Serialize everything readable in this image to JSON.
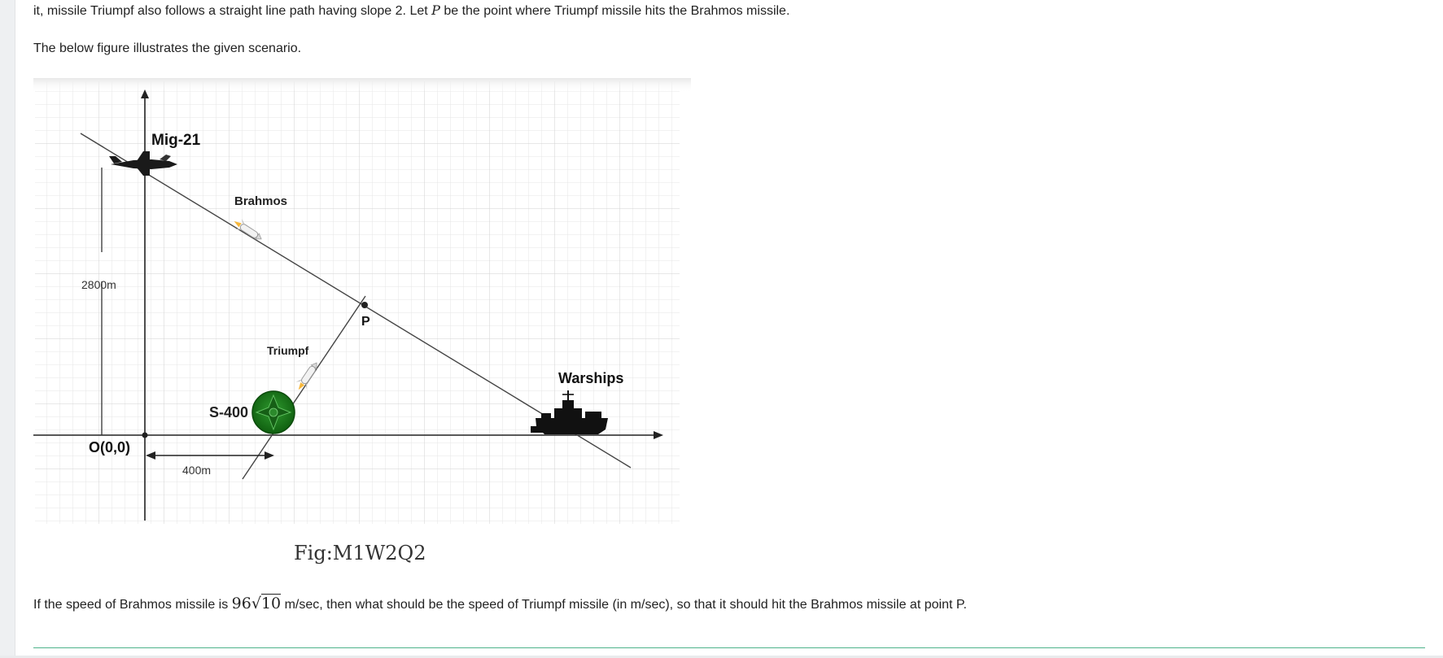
{
  "text": {
    "top_line_pre": "it, missile Triumpf also follows a straight line path having slope 2. Let ",
    "top_line_var": "P",
    "top_line_post": " be the point where Triumpf missile hits the Brahmos missile.",
    "intro": "The below figure illustrates the given scenario.",
    "question_pre": "If the speed of Brahmos missile is ",
    "question_coef": "96",
    "question_radicand": "10",
    "question_post": " m/sec, then what should be the speed of Triumpf missile (in m/sec), so that it should hit the Brahmos missile at point P."
  },
  "figure": {
    "caption": "Fig:M1W2Q2",
    "labels": {
      "mig": "Mig-21",
      "brahmos": "Brahmos",
      "height": "2800m",
      "point_p": "P",
      "triumpf": "Triumpf",
      "warships": "Warships",
      "s400": "S-400",
      "origin": "O(0,0)",
      "distance": "400m"
    },
    "icons": [
      "fighter-jet-icon",
      "missile-icon",
      "missile-icon",
      "s400-emblem-icon",
      "warship-icon"
    ]
  },
  "colors": {
    "accent_rule": "#4fb38a",
    "s400_green": "#1f7a1f"
  }
}
